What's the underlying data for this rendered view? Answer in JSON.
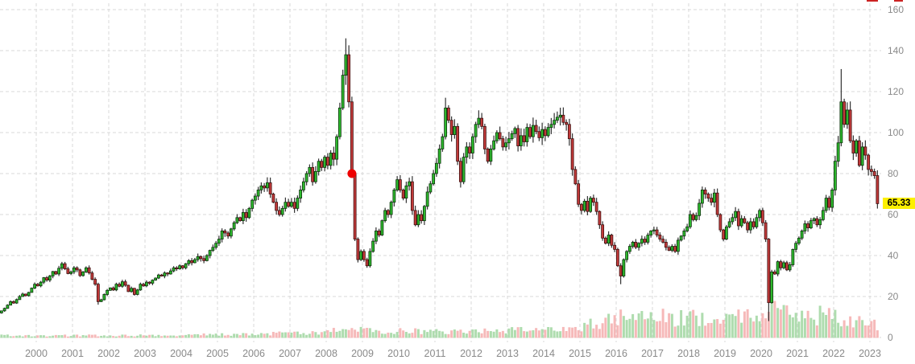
{
  "chart": {
    "title": "",
    "last_price_label": "65.33",
    "y_axis_ticks": [
      "160",
      "140",
      "120",
      "100",
      "80",
      "60",
      "40",
      "20",
      "0"
    ],
    "x_axis_ticks": [
      "2000",
      "2001",
      "2002",
      "2003",
      "2004",
      "2005",
      "2006",
      "2007",
      "2008",
      "2009",
      "2010",
      "2011",
      "2012",
      "2013",
      "2014",
      "2015",
      "2016",
      "2017",
      "2018",
      "2019",
      "2020",
      "2021",
      "2022",
      "2023"
    ],
    "colors": {
      "background": "#ffffff",
      "grid": "#d8d8d8",
      "axis_text": "#8a8a8a",
      "candle_up_fill": "#2db92d",
      "candle_up_stroke": "#0c330c",
      "candle_down_fill": "#c23a3a",
      "candle_down_stroke": "#401010",
      "wick": "#333333",
      "volume_up": "#aedcae",
      "volume_down": "#f6b9b9",
      "marker": "#ee0000",
      "last_price_bg": "#fdf000",
      "last_price_text": "#000000",
      "clipped_fragment": "#cc2222"
    }
  },
  "chart_data": {
    "type": "candlestick",
    "title": "",
    "frequency": "monthly",
    "start_month": "1999-01",
    "end_month": "2023-03",
    "ylim": [
      0,
      160
    ],
    "y_step": 20,
    "grid": true,
    "first_open": 12,
    "last_close": 65.33,
    "closes": [
      13.0,
      14.2,
      15.8,
      17.5,
      16.8,
      18.5,
      20.0,
      21.2,
      20.4,
      22.0,
      24.1,
      26.0,
      25.2,
      27.0,
      29.2,
      28.0,
      30.0,
      32.2,
      31.0,
      33.8,
      36.0,
      33.5,
      31.2,
      32.0,
      34.0,
      33.0,
      30.2,
      32.0,
      34.0,
      31.5,
      28.4,
      26.0,
      17.5,
      18.4,
      21.0,
      23.0,
      24.2,
      23.2,
      26.0,
      25.0,
      27.2,
      25.5,
      22.4,
      24.0,
      21.0,
      23.2,
      26.0,
      25.2,
      27.0,
      26.5,
      28.0,
      29.0,
      30.5,
      30.0,
      31.5,
      31.0,
      32.5,
      34.0,
      33.5,
      35.0,
      34.0,
      36.0,
      37.5,
      36.5,
      38.0,
      39.5,
      38.5,
      37.5,
      40.0,
      42.5,
      44.0,
      46.0,
      48.0,
      52.0,
      51.0,
      49.5,
      53.0,
      56.0,
      58.5,
      57.0,
      61.0,
      58.5,
      63.0,
      67.0,
      69.0,
      72.0,
      74.0,
      73.0,
      75.5,
      70.0,
      66.0,
      62.0,
      60.0,
      63.0,
      66.0,
      64.0,
      66.0,
      63.0,
      68.0,
      72.0,
      76.0,
      80.0,
      83.0,
      76.0,
      81.0,
      86.0,
      83.0,
      88.0,
      84.0,
      90.0,
      87.0,
      98.0,
      112.0,
      128.0,
      138.0,
      115.0,
      80.0,
      48.0,
      38.0,
      42.0,
      38.0,
      35.0,
      42.0,
      47.0,
      52.0,
      50.0,
      57.0,
      62.0,
      60.0,
      66.0,
      72.0,
      77.0,
      72.0,
      68.0,
      74.0,
      76.0,
      62.0,
      55.0,
      60.0,
      57.0,
      64.0,
      71.0,
      75.0,
      80.0,
      85.0,
      92.0,
      98.0,
      112.0,
      106.0,
      99.0,
      103.0,
      86.0,
      76.0,
      88.0,
      93.0,
      90.0,
      98.0,
      104.0,
      107.0,
      103.0,
      92.0,
      86.0,
      92.0,
      96.0,
      100.0,
      97.0,
      93.0,
      95.0,
      97.0,
      99.5,
      102.0,
      93.5,
      98.5,
      95.5,
      102.5,
      98.0,
      103.5,
      100.5,
      97.5,
      101.5,
      98.5,
      102.5,
      104.0,
      106.0,
      107.5,
      108.5,
      105.0,
      104.0,
      97.0,
      82.0,
      75.0,
      65.0,
      62.0,
      66.5,
      61.5,
      68.0,
      66.0,
      61.5,
      55.0,
      48.5,
      46.0,
      50.0,
      45.0,
      43.0,
      35.0,
      30.0,
      38.0,
      42.0,
      44.5,
      46.5,
      44.0,
      46.0,
      48.0,
      46.5,
      50.0,
      52.0,
      52.5,
      50.0,
      48.0,
      46.5,
      44.0,
      42.5,
      44.5,
      42.0,
      47.5,
      49.5,
      52.0,
      54.0,
      60.0,
      57.5,
      59.5,
      65.5,
      72.0,
      70.0,
      68.0,
      66.0,
      70.5,
      60.0,
      52.5,
      48.0,
      54.0,
      56.5,
      58.5,
      61.5,
      54.5,
      58.0,
      56.0,
      52.5,
      56.5,
      54.0,
      58.5,
      62.0,
      56.0,
      48.0,
      17.0,
      32.0,
      31.0,
      37.0,
      34.0,
      36.5,
      33.0,
      35.5,
      43.0,
      46.0,
      48.5,
      52.0,
      55.5,
      53.5,
      57.0,
      58.0,
      55.0,
      57.5,
      62.0,
      68.0,
      63.5,
      72.0,
      86.0,
      95.0,
      115.0,
      104.0,
      111.0,
      96.0,
      90.0,
      96.0,
      84.0,
      93.0,
      89.0,
      82.0,
      81.0,
      79.0,
      65.33
    ],
    "wick_overrides": {
      "32": {
        "low": 16
      },
      "114": {
        "high": 146
      },
      "147": {
        "high": 117
      },
      "205": {
        "low": 26
      },
      "254": {
        "low": 8
      },
      "278": {
        "high": 131
      }
    },
    "marker": {
      "index": 116,
      "price": 80,
      "label": "event-dot"
    },
    "volume_profile_anchors": [
      [
        0,
        3
      ],
      [
        36,
        3
      ],
      [
        60,
        3.5
      ],
      [
        84,
        5
      ],
      [
        100,
        6
      ],
      [
        108,
        8
      ],
      [
        114,
        12
      ],
      [
        120,
        9
      ],
      [
        150,
        8
      ],
      [
        180,
        10
      ],
      [
        192,
        14
      ],
      [
        202,
        24
      ],
      [
        206,
        30
      ],
      [
        216,
        25
      ],
      [
        228,
        26
      ],
      [
        240,
        25
      ],
      [
        252,
        30
      ],
      [
        254,
        44
      ],
      [
        258,
        34
      ],
      [
        264,
        30
      ],
      [
        276,
        26
      ],
      [
        284,
        22
      ],
      [
        290,
        15
      ]
    ],
    "legend": null,
    "xlabel": "",
    "ylabel": ""
  }
}
